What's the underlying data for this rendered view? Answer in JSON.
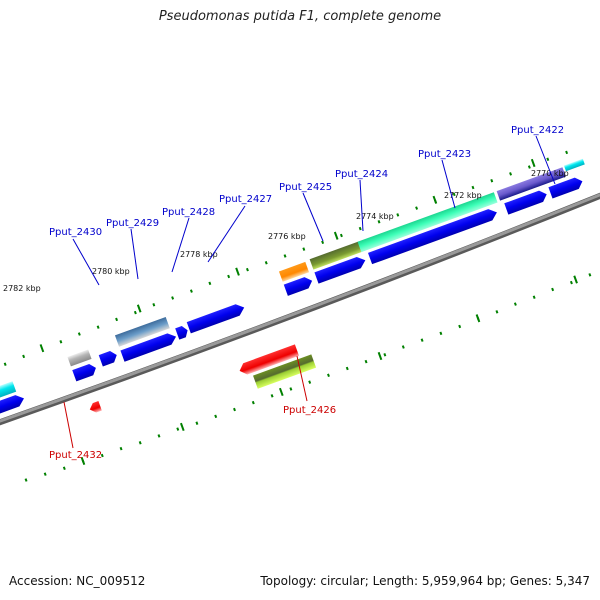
{
  "title": "Pseudomonas putida F1, complete genome",
  "accession": "Accession: NC_009512",
  "topology": "Topology: circular; Length: 5,959,964 bp; Genes: 5,347",
  "kbp_labels": [
    "2782 kbp",
    "2780 kbp",
    "2778 kbp",
    "2776 kbp",
    "2774 kbp",
    "2772 kbp",
    "2770 kbp"
  ],
  "gene_labels": {
    "forward": [
      "Pput_2430",
      "Pput_2429",
      "Pput_2428",
      "Pput_2427",
      "Pput_2425",
      "Pput_2424",
      "Pput_2423",
      "Pput_2422"
    ],
    "reverse": [
      "Pput_2426",
      "Pput_2432"
    ]
  },
  "colors": {
    "backbone": "#8a8a8a",
    "blue": "#0000ee",
    "cyan": "#00e0e8",
    "grey": "#b0b0b0",
    "steelblue": "#5a8fbf",
    "orange": "#ff8c00",
    "olive": "#6b8e23",
    "seagreen": "#2ef5a8",
    "slateblue": "#6a5acd",
    "red": "#ee0000",
    "yellowgreen": "#9acd32",
    "tick": "#008000",
    "label_forward": "#0000cc",
    "label_reverse": "#cc0000"
  }
}
